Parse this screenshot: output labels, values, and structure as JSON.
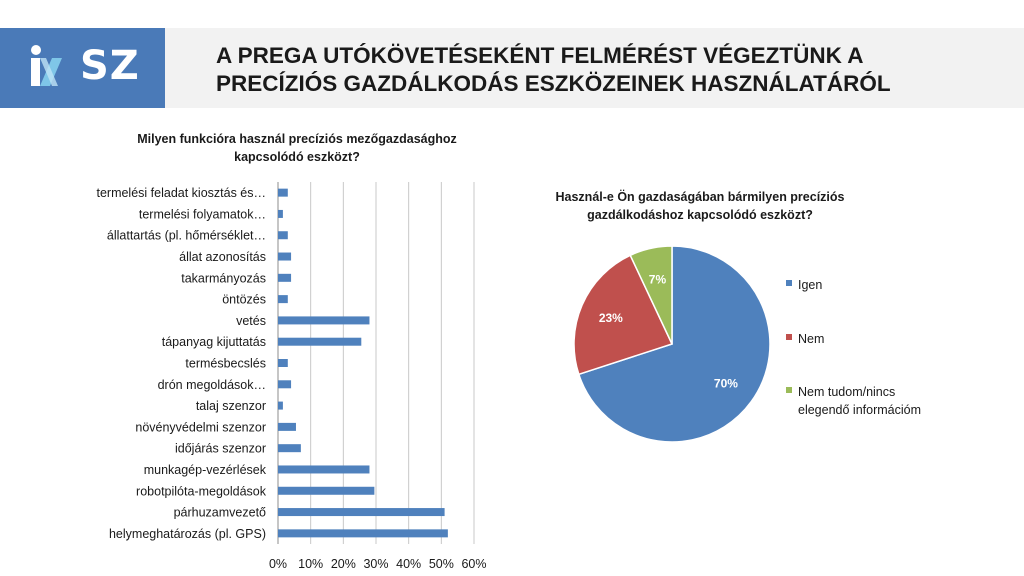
{
  "header": {
    "logo_text": "SZ",
    "title_line1": "A PREGA UTÓKÖVETÉSEKÉNT FELMÉRÉST VÉGEZTÜNK A",
    "title_line2": "PRECÍZIÓS GAZDÁLKODÁS ESZKÖZEINEK HASZNÁLATÁRÓL"
  },
  "colors": {
    "brand": "#4a7ab8",
    "blue": "#4f81bd",
    "red": "#c0504d",
    "green": "#9bbb59"
  },
  "chart_data": [
    {
      "type": "bar",
      "orientation": "horizontal",
      "title_lines": [
        "Milyen funkcióra használ precíziós mezőgazdasághoz",
        "kapcsolódó eszközt?"
      ],
      "categories": [
        "termelési feladat kiosztás és…",
        "termelési folyamatok…",
        "állattartás (pl. hőmérséklet…",
        "állat azonosítás",
        "takarmányozás",
        "öntözés",
        "vetés",
        "tápanyag kijuttatás",
        "termésbecslés",
        "drón megoldások…",
        "talaj szenzor",
        "növényvédelmi szenzor",
        "időjárás szenzor",
        "munkagép-vezérlések",
        "robotpilóta-megoldások",
        "párhuzamvezető",
        "helymeghatározás (pl. GPS)"
      ],
      "values": [
        3,
        1.5,
        3,
        4,
        4,
        3,
        28,
        25.5,
        3,
        4,
        1.5,
        5.5,
        7,
        28,
        29.5,
        51,
        52
      ],
      "xlim": [
        0,
        60
      ],
      "x_ticks": [
        "0%",
        "10%",
        "20%",
        "30%",
        "40%",
        "50%",
        "60%"
      ],
      "grid": true
    },
    {
      "type": "pie",
      "title_lines": [
        "Használ-e Ön gazdaságában bármilyen precíziós",
        "gazdálkodáshoz kapcsolódó eszközt?"
      ],
      "slices": [
        {
          "label_lines": [
            "Igen"
          ],
          "value": 70,
          "data_label": "70%"
        },
        {
          "label_lines": [
            "Nem"
          ],
          "value": 23,
          "data_label": "23%"
        },
        {
          "label_lines": [
            "Nem tudom/nincs",
            "elegendő információm"
          ],
          "value": 7,
          "data_label": "7%"
        }
      ],
      "legend_position": "right"
    }
  ]
}
